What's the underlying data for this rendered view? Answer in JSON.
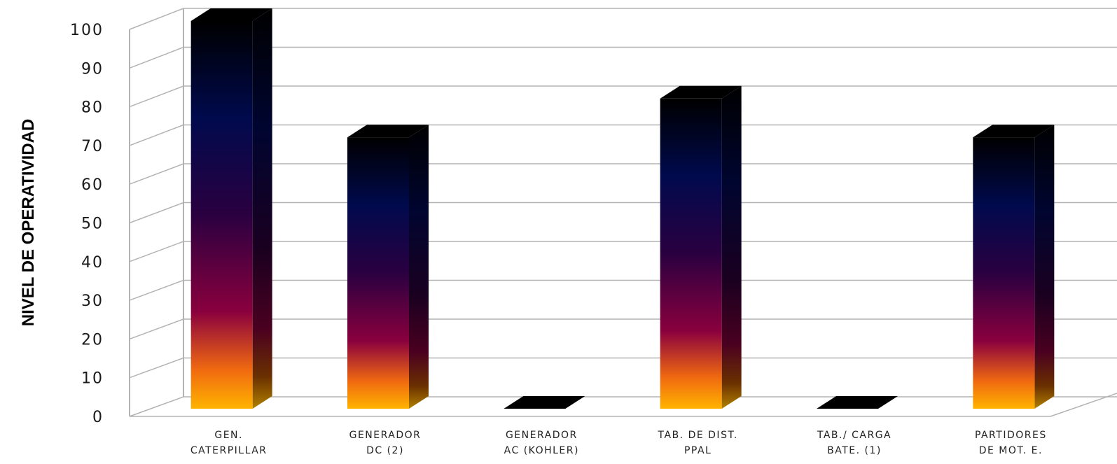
{
  "chart_data": {
    "type": "bar",
    "title": "",
    "xlabel": "",
    "ylabel": "NIVEL DE OPERATIVIDAD",
    "ylim": [
      0,
      100
    ],
    "yticks": [
      "0",
      "10",
      "20",
      "30",
      "40",
      "50",
      "60",
      "70",
      "80",
      "90",
      "100"
    ],
    "grid": true,
    "style": "3d-column-gradient",
    "colors": {
      "bar_top": "#000000",
      "bar_upper": "#000a4d",
      "bar_mid": "#8a003e",
      "bar_lower": "#f06a10",
      "bar_bottom": "#ffb300",
      "grid": "#b3b3b3",
      "wall": "#9a9a9a"
    },
    "categories": [
      [
        "GEN.",
        "CATERPILLAR"
      ],
      [
        "GENERADOR",
        "DC (2)"
      ],
      [
        "GENERADOR",
        "AC (KOHLER)"
      ],
      [
        "TAB. DE DIST.",
        "PPAL"
      ],
      [
        "TAB./ CARGA",
        "BATE. (1)"
      ],
      [
        "PARTIDORES",
        "DE MOT. E."
      ]
    ],
    "values": [
      100,
      70,
      0,
      80,
      0,
      70
    ]
  }
}
